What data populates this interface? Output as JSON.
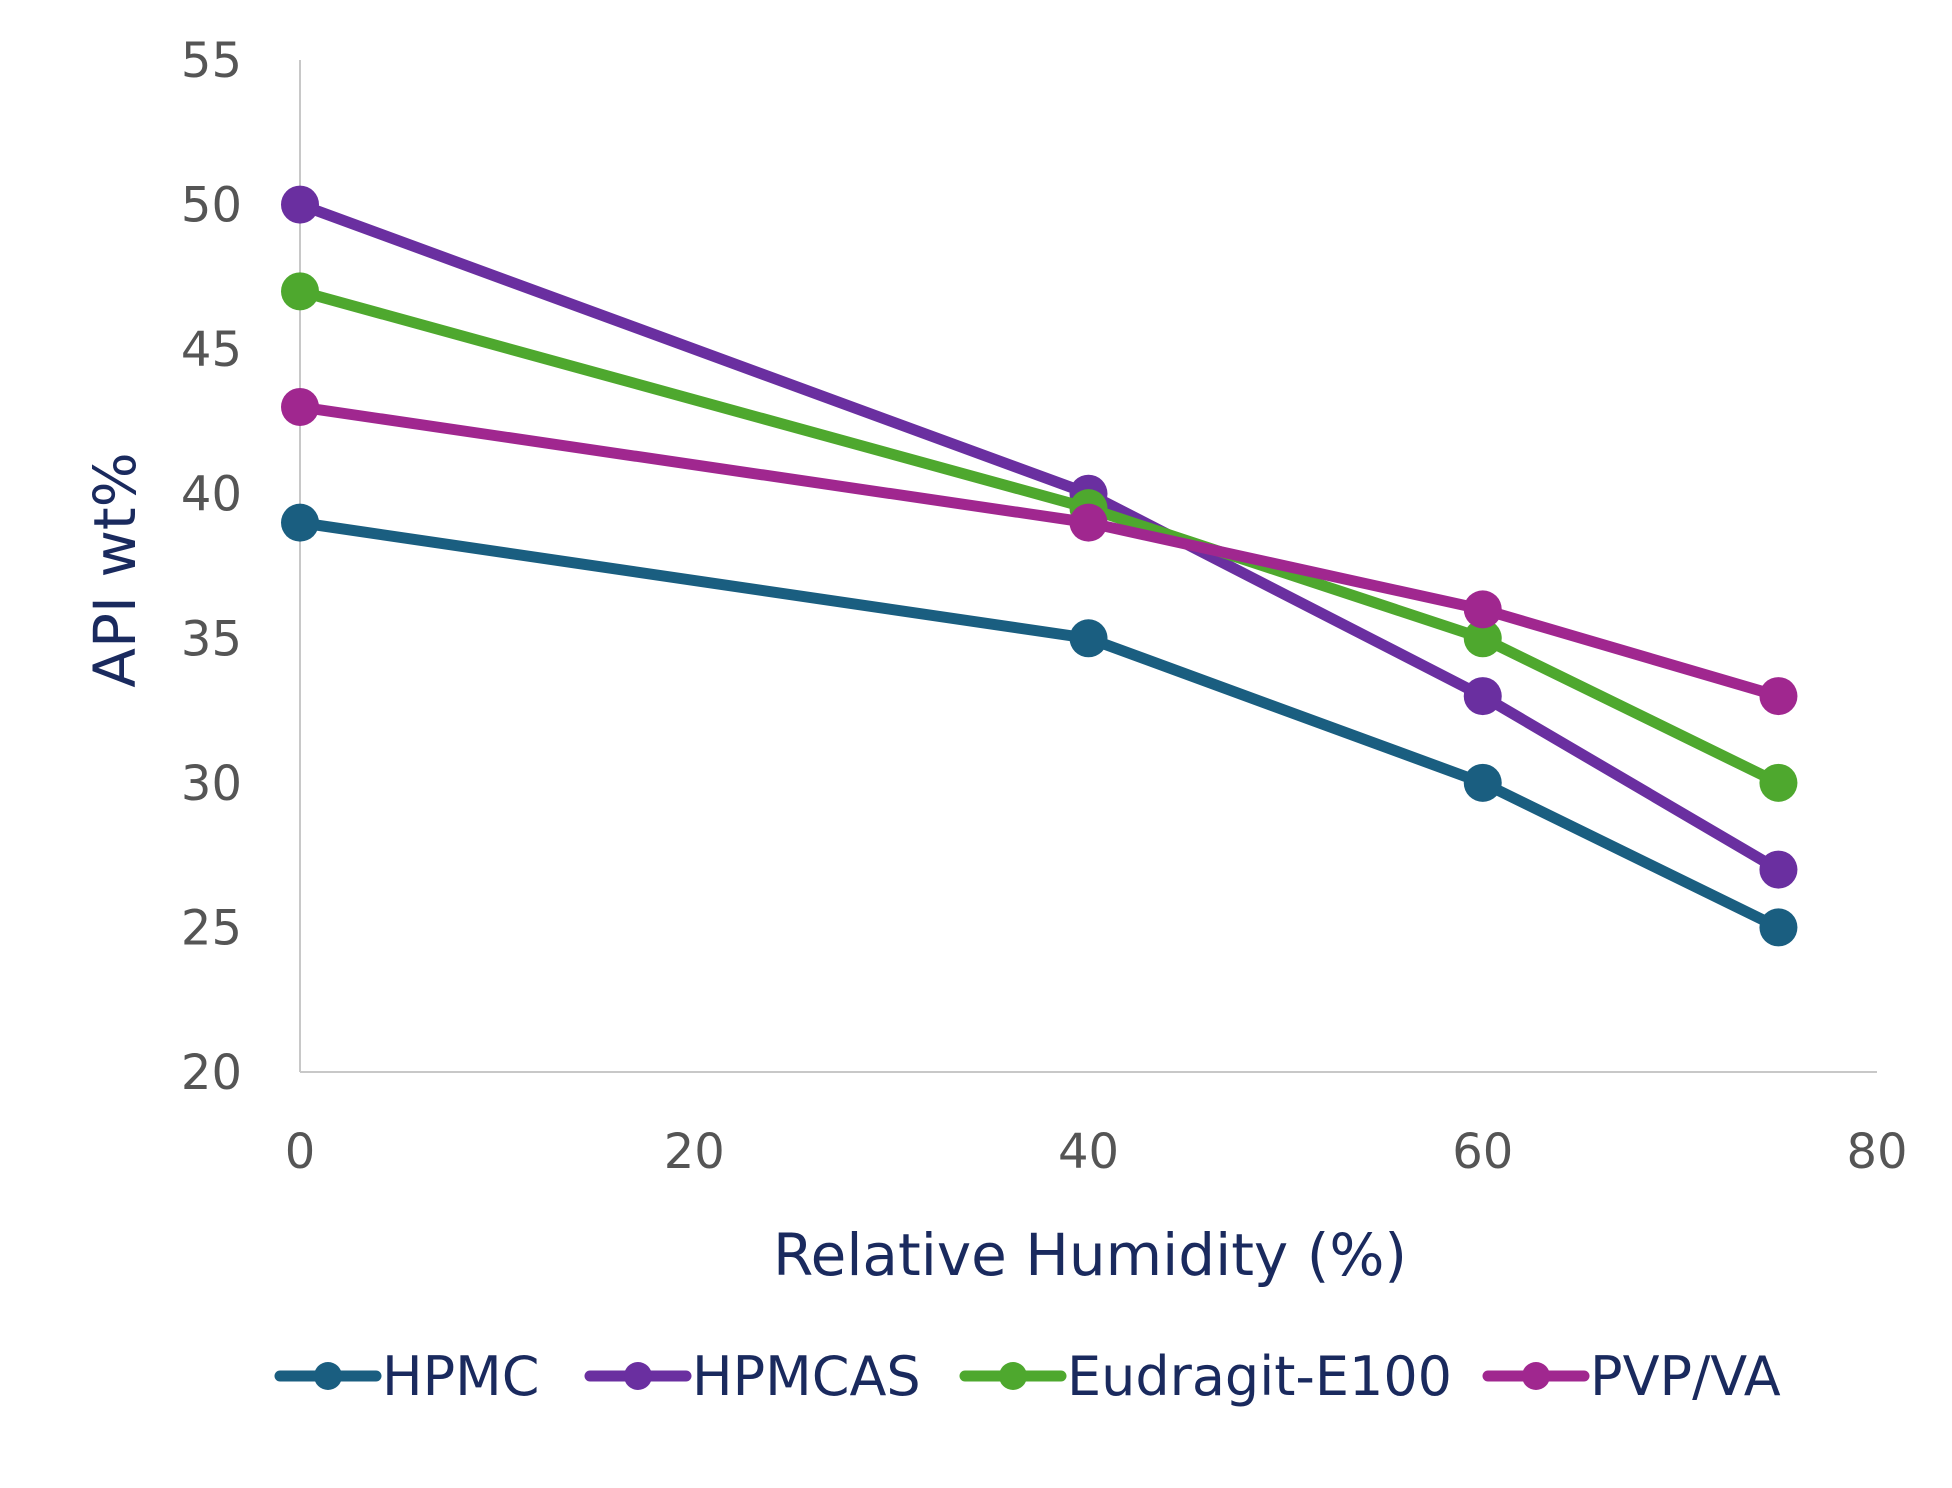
{
  "chart_data": {
    "type": "line",
    "title": "",
    "xlabel": "Relative Humidity (%)",
    "ylabel": "API wt%",
    "xlim": [
      0,
      80
    ],
    "ylim": [
      20,
      55
    ],
    "xticks": [
      "0",
      "20",
      "40",
      "60",
      "80"
    ],
    "yticks": [
      "20",
      "25",
      "30",
      "35",
      "40",
      "45",
      "50",
      "55"
    ],
    "grid": false,
    "legend": "bottom",
    "x": [
      0,
      40,
      60,
      75
    ],
    "series": [
      {
        "name": "HPMC",
        "color": "#1a5e80",
        "values": [
          39,
          35,
          30,
          25
        ]
      },
      {
        "name": "HPMCAS",
        "color": "#6a2fa0",
        "values": [
          50,
          40,
          33,
          27
        ]
      },
      {
        "name": "Eudragit-E100",
        "color": "#4ea82e",
        "values": [
          47,
          39.5,
          35,
          30
        ]
      },
      {
        "name": "PVP/VA",
        "color": "#a0278f",
        "values": [
          43,
          39,
          36,
          33
        ]
      }
    ]
  }
}
